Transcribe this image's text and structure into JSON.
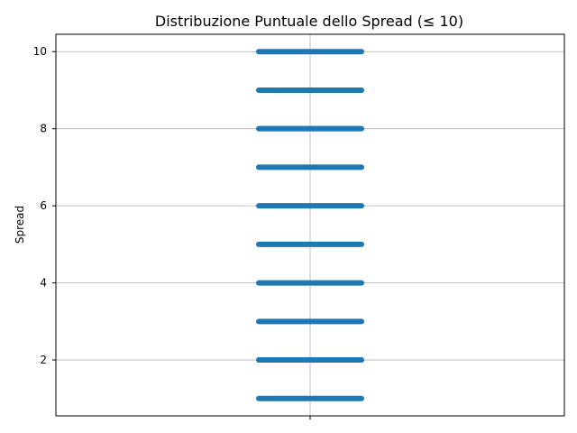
{
  "chart_data": {
    "type": "scatter",
    "title": "Distribuzione Puntuale dello Spread (≤ 10)",
    "xlabel": "",
    "ylabel": "Spread",
    "ylim": [
      0.55,
      10.45
    ],
    "yticks": [
      2,
      4,
      6,
      8,
      10
    ],
    "xticks": [
      ""
    ],
    "grid": true,
    "color": "#1f77b4",
    "series": [
      {
        "values": [
          1,
          2,
          3,
          4,
          5,
          6,
          7,
          8,
          9,
          10
        ]
      }
    ]
  }
}
